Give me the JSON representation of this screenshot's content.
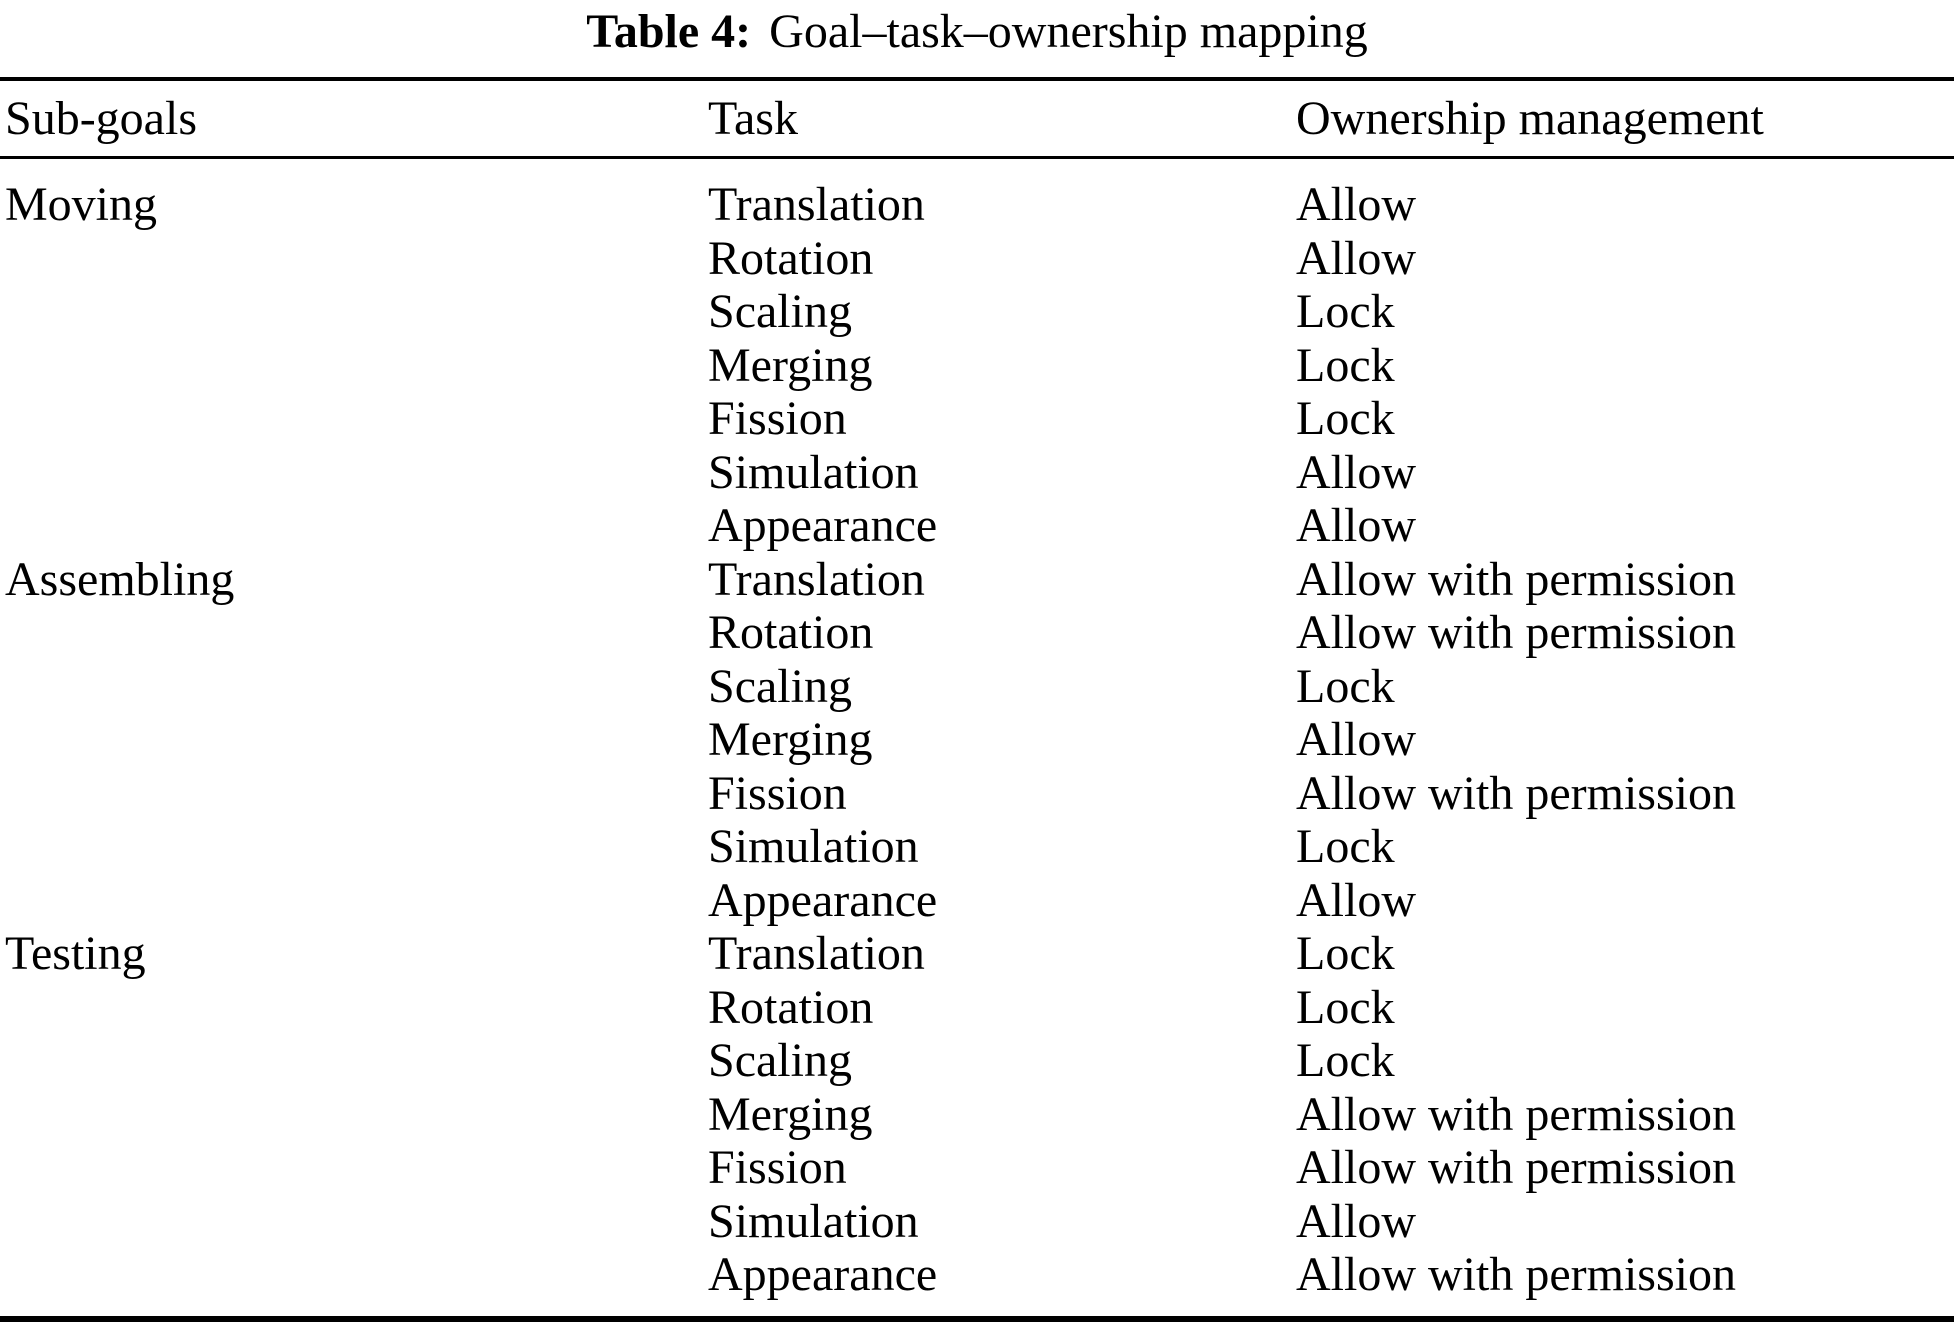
{
  "colors": {
    "text": "#000000",
    "background": "#ffffff",
    "rule": "#000000"
  },
  "table": {
    "caption_label": "Table 4:",
    "caption_text": "Goal–task–ownership mapping",
    "columns": [
      "Sub-goals",
      "Task",
      "Ownership management"
    ],
    "groups": [
      {
        "subgoal": "Moving",
        "rows": [
          {
            "task": "Translation",
            "ownership": "Allow"
          },
          {
            "task": "Rotation",
            "ownership": "Allow"
          },
          {
            "task": "Scaling",
            "ownership": "Lock"
          },
          {
            "task": "Merging",
            "ownership": "Lock"
          },
          {
            "task": "Fission",
            "ownership": "Lock"
          },
          {
            "task": "Simulation",
            "ownership": "Allow"
          },
          {
            "task": "Appearance",
            "ownership": "Allow"
          }
        ]
      },
      {
        "subgoal": "Assembling",
        "rows": [
          {
            "task": "Translation",
            "ownership": "Allow with permission"
          },
          {
            "task": "Rotation",
            "ownership": "Allow with permission"
          },
          {
            "task": "Scaling",
            "ownership": "Lock"
          },
          {
            "task": "Merging",
            "ownership": "Allow"
          },
          {
            "task": "Fission",
            "ownership": "Allow with permission"
          },
          {
            "task": "Simulation",
            "ownership": "Lock"
          },
          {
            "task": "Appearance",
            "ownership": "Allow"
          }
        ]
      },
      {
        "subgoal": "Testing",
        "rows": [
          {
            "task": "Translation",
            "ownership": "Lock"
          },
          {
            "task": "Rotation",
            "ownership": "Lock"
          },
          {
            "task": "Scaling",
            "ownership": "Lock"
          },
          {
            "task": "Merging",
            "ownership": "Allow with permission"
          },
          {
            "task": "Fission",
            "ownership": "Allow with permission"
          },
          {
            "task": "Simulation",
            "ownership": "Allow"
          },
          {
            "task": "Appearance",
            "ownership": "Allow with permission"
          }
        ]
      }
    ]
  }
}
